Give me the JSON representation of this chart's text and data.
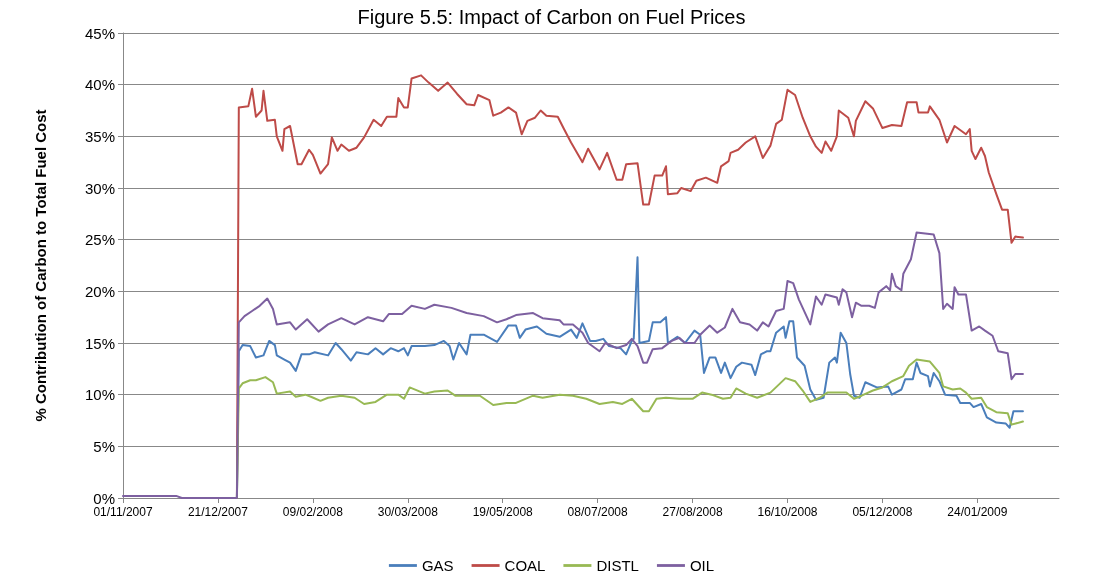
{
  "chart_data": {
    "type": "line",
    "title": "Figure 5.5: Impact of Carbon on Fuel Prices",
    "ylabel": "% Contribution of Carbon to Total Fuel Cost",
    "xlim": [
      "2007-11-01",
      "2009-03-08"
    ],
    "xticks": [
      {
        "value": "2007-11-01",
        "label": "01/11/2007"
      },
      {
        "value": "2007-12-21",
        "label": "21/12/2007"
      },
      {
        "value": "2008-02-09",
        "label": "09/02/2008"
      },
      {
        "value": "2008-03-30",
        "label": "30/03/2008"
      },
      {
        "value": "2008-05-19",
        "label": "19/05/2008"
      },
      {
        "value": "2008-07-08",
        "label": "08/07/2008"
      },
      {
        "value": "2008-08-27",
        "label": "27/08/2008"
      },
      {
        "value": "2008-10-16",
        "label": "16/10/2008"
      },
      {
        "value": "2008-12-05",
        "label": "05/12/2008"
      },
      {
        "value": "2009-01-24",
        "label": "24/01/2009"
      }
    ],
    "ylim": [
      0,
      45
    ],
    "yticks": [
      {
        "value": 0,
        "label": "0%"
      },
      {
        "value": 5,
        "label": "5%"
      },
      {
        "value": 10,
        "label": "10%"
      },
      {
        "value": 15,
        "label": "15%"
      },
      {
        "value": 20,
        "label": "20%"
      },
      {
        "value": 25,
        "label": "25%"
      },
      {
        "value": 30,
        "label": "30%"
      },
      {
        "value": 35,
        "label": "35%"
      },
      {
        "value": 40,
        "label": "40%"
      },
      {
        "value": 45,
        "label": "45%"
      }
    ],
    "grid": "y",
    "legend": "bottom",
    "marker": "none",
    "line_style": "solid",
    "series": [
      {
        "name": "GAS",
        "color": "#4a7ebb",
        "x": [
          "2007-12-31",
          "2008-01-01",
          "2008-01-03",
          "2008-01-07",
          "2008-01-10",
          "2008-01-14",
          "2008-01-17",
          "2008-01-20",
          "2008-01-21",
          "2008-01-25",
          "2008-01-28",
          "2008-01-31",
          "2008-02-03",
          "2008-02-07",
          "2008-02-10",
          "2008-02-17",
          "2008-02-21",
          "2008-02-24",
          "2008-02-29",
          "2008-03-03",
          "2008-03-09",
          "2008-03-13",
          "2008-03-17",
          "2008-03-21",
          "2008-03-25",
          "2008-03-28",
          "2008-03-30",
          "2008-04-01",
          "2008-04-08",
          "2008-04-13",
          "2008-04-18",
          "2008-04-21",
          "2008-04-23",
          "2008-04-26",
          "2008-04-30",
          "2008-05-02",
          "2008-05-09",
          "2008-05-16",
          "2008-05-22",
          "2008-05-26",
          "2008-05-28",
          "2008-05-31",
          "2008-06-06",
          "2008-06-11",
          "2008-06-18",
          "2008-06-24",
          "2008-06-27",
          "2008-06-30",
          "2008-07-04",
          "2008-07-07",
          "2008-07-11",
          "2008-07-14",
          "2008-07-20",
          "2008-07-23",
          "2008-07-26",
          "2008-07-27",
          "2008-07-29",
          "2008-07-30",
          "2008-08-04",
          "2008-08-06",
          "2008-08-10",
          "2008-08-13",
          "2008-08-14",
          "2008-08-19",
          "2008-08-23",
          "2008-08-28",
          "2008-08-31",
          "2008-09-02",
          "2008-09-05",
          "2008-09-08",
          "2008-09-11",
          "2008-09-13",
          "2008-09-16",
          "2008-09-19",
          "2008-09-22",
          "2008-09-27",
          "2008-09-29",
          "2008-10-02",
          "2008-10-05",
          "2008-10-07",
          "2008-10-10",
          "2008-10-14",
          "2008-10-15",
          "2008-10-17",
          "2008-10-19",
          "2008-10-21",
          "2008-10-25",
          "2008-10-28",
          "2008-10-31",
          "2008-11-04",
          "2008-11-07",
          "2008-11-10",
          "2008-11-11",
          "2008-11-13",
          "2008-11-16",
          "2008-11-18",
          "2008-11-20",
          "2008-11-23",
          "2008-11-26",
          "2008-12-02",
          "2008-12-08",
          "2008-12-10",
          "2008-12-15",
          "2008-12-17",
          "2008-12-21",
          "2008-12-23",
          "2008-12-25",
          "2008-12-29",
          "2008-12-30",
          "2009-01-01",
          "2009-01-04",
          "2009-01-07",
          "2009-01-13",
          "2009-01-15",
          "2009-01-20",
          "2009-01-22",
          "2009-01-26",
          "2009-01-29",
          "2009-02-03",
          "2009-02-08",
          "2009-02-10",
          "2009-02-12",
          "2009-02-17"
        ],
        "values": [
          0,
          14.2,
          14.8,
          14.7,
          13.6,
          13.8,
          15.2,
          14.8,
          13.8,
          13.4,
          13.1,
          12.3,
          13.9,
          13.9,
          14.1,
          13.8,
          15.0,
          14.4,
          13.3,
          14.1,
          13.9,
          14.5,
          13.9,
          14.5,
          14.2,
          14.5,
          13.8,
          14.7,
          14.7,
          14.8,
          15.2,
          14.7,
          13.4,
          15.0,
          13.9,
          15.8,
          15.8,
          15.1,
          16.7,
          16.7,
          15.5,
          16.3,
          16.6,
          15.9,
          15.6,
          16.3,
          15.5,
          16.9,
          15.2,
          15.2,
          15.4,
          14.7,
          14.5,
          13.9,
          15.2,
          15.4,
          23.3,
          15.0,
          15.2,
          17.0,
          17.0,
          17.5,
          15.0,
          15.6,
          15.0,
          16.2,
          15.8,
          12.1,
          13.6,
          13.6,
          12.1,
          13.1,
          11.6,
          12.7,
          13.1,
          12.9,
          11.9,
          13.9,
          14.2,
          14.2,
          16.0,
          16.6,
          15.5,
          17.1,
          17.1,
          13.6,
          12.8,
          10.5,
          9.5,
          9.7,
          13.1,
          13.6,
          13.1,
          16.0,
          15.0,
          12.0,
          9.9,
          9.7,
          11.2,
          10.7,
          10.8,
          10.0,
          10.5,
          11.5,
          11.5,
          13.1,
          12.1,
          11.8,
          10.8,
          12.1,
          11.3,
          10.0,
          9.9,
          9.2,
          9.2,
          8.8,
          9.1,
          7.8,
          7.3,
          7.2,
          6.8,
          8.4,
          8.4
        ]
      },
      {
        "name": "COAL",
        "color": "#be4b48",
        "x": [
          "2007-12-31",
          "2008-01-01",
          "2008-01-06",
          "2008-01-08",
          "2008-01-10",
          "2008-01-13",
          "2008-01-14",
          "2008-01-16",
          "2008-01-20",
          "2008-01-21",
          "2008-01-24",
          "2008-01-25",
          "2008-01-28",
          "2008-02-01",
          "2008-02-03",
          "2008-02-07",
          "2008-02-09",
          "2008-02-13",
          "2008-02-17",
          "2008-02-19",
          "2008-02-22",
          "2008-02-24",
          "2008-02-28",
          "2008-03-03",
          "2008-03-07",
          "2008-03-12",
          "2008-03-16",
          "2008-03-19",
          "2008-03-24",
          "2008-03-25",
          "2008-03-28",
          "2008-03-30",
          "2008-04-01",
          "2008-04-06",
          "2008-04-10",
          "2008-04-15",
          "2008-04-20",
          "2008-04-25",
          "2008-04-30",
          "2008-05-04",
          "2008-05-06",
          "2008-05-12",
          "2008-05-14",
          "2008-05-18",
          "2008-05-22",
          "2008-05-26",
          "2008-05-29",
          "2008-06-01",
          "2008-06-05",
          "2008-06-08",
          "2008-06-11",
          "2008-06-17",
          "2008-06-20",
          "2008-06-24",
          "2008-06-30",
          "2008-07-03",
          "2008-07-09",
          "2008-07-13",
          "2008-07-18",
          "2008-07-21",
          "2008-07-23",
          "2008-07-29",
          "2008-08-01",
          "2008-08-04",
          "2008-08-07",
          "2008-08-11",
          "2008-08-13",
          "2008-08-14",
          "2008-08-19",
          "2008-08-21",
          "2008-08-26",
          "2008-08-29",
          "2008-09-03",
          "2008-09-09",
          "2008-09-11",
          "2008-09-15",
          "2008-09-16",
          "2008-09-20",
          "2008-09-24",
          "2008-09-29",
          "2008-10-03",
          "2008-10-07",
          "2008-10-10",
          "2008-10-13",
          "2008-10-16",
          "2008-10-20",
          "2008-10-24",
          "2008-10-28",
          "2008-10-31",
          "2008-11-03",
          "2008-11-05",
          "2008-11-08",
          "2008-11-11",
          "2008-11-12",
          "2008-11-17",
          "2008-11-20",
          "2008-11-21",
          "2008-11-26",
          "2008-11-30",
          "2008-12-05",
          "2008-12-10",
          "2008-12-15",
          "2008-12-18",
          "2008-12-23",
          "2008-12-24",
          "2008-12-29",
          "2008-12-30",
          "2009-01-04",
          "2009-01-08",
          "2009-01-12",
          "2009-01-18",
          "2009-01-20",
          "2009-01-21",
          "2009-01-23",
          "2009-01-26",
          "2009-01-28",
          "2009-01-30",
          "2009-02-03",
          "2009-02-06",
          "2009-02-09",
          "2009-02-11",
          "2009-02-13",
          "2009-02-17"
        ],
        "values": [
          0,
          37.8,
          37.9,
          39.6,
          36.9,
          37.5,
          39.4,
          36.5,
          36.6,
          35.0,
          33.6,
          35.7,
          36.0,
          32.3,
          32.3,
          33.7,
          33.2,
          31.4,
          32.3,
          34.9,
          33.6,
          34.2,
          33.6,
          33.9,
          34.9,
          36.6,
          36.0,
          36.9,
          36.9,
          38.7,
          37.8,
          37.8,
          40.6,
          40.9,
          40.2,
          39.4,
          40.2,
          39.1,
          38.1,
          38.0,
          39.0,
          38.5,
          37.0,
          37.3,
          37.8,
          37.3,
          35.2,
          36.5,
          36.8,
          37.5,
          37.0,
          36.9,
          35.8,
          34.4,
          32.5,
          33.8,
          31.8,
          33.4,
          30.8,
          30.8,
          32.3,
          32.4,
          28.4,
          28.4,
          31.2,
          31.2,
          32.1,
          29.4,
          29.5,
          30.0,
          29.7,
          30.7,
          31.0,
          30.5,
          32.1,
          32.6,
          33.4,
          33.7,
          34.4,
          35.0,
          32.9,
          34.1,
          36.2,
          36.6,
          39.5,
          39.0,
          36.8,
          35.0,
          34.0,
          33.4,
          34.5,
          33.6,
          35.0,
          37.5,
          36.8,
          35.0,
          36.5,
          38.4,
          37.7,
          35.8,
          36.1,
          36.0,
          38.3,
          38.3,
          37.3,
          37.3,
          37.9,
          36.6,
          34.4,
          36.0,
          35.2,
          35.7,
          33.6,
          32.8,
          33.9,
          33.1,
          31.5,
          29.4,
          27.9,
          27.9,
          24.7,
          25.3,
          25.2
        ]
      },
      {
        "name": "DISTL",
        "color": "#98b954",
        "x": [
          "2007-12-31",
          "2008-01-01",
          "2008-01-03",
          "2008-01-07",
          "2008-01-10",
          "2008-01-15",
          "2008-01-19",
          "2008-01-21",
          "2008-01-28",
          "2008-01-31",
          "2008-02-05",
          "2008-02-08",
          "2008-02-13",
          "2008-02-17",
          "2008-02-24",
          "2008-03-02",
          "2008-03-07",
          "2008-03-13",
          "2008-03-19",
          "2008-03-25",
          "2008-03-28",
          "2008-03-31",
          "2008-04-08",
          "2008-04-13",
          "2008-04-20",
          "2008-04-24",
          "2008-04-30",
          "2008-05-07",
          "2008-05-14",
          "2008-05-21",
          "2008-05-26",
          "2008-06-04",
          "2008-06-09",
          "2008-06-18",
          "2008-06-25",
          "2008-07-02",
          "2008-07-09",
          "2008-07-16",
          "2008-07-21",
          "2008-07-26",
          "2008-08-01",
          "2008-08-04",
          "2008-08-08",
          "2008-08-13",
          "2008-08-20",
          "2008-08-27",
          "2008-09-01",
          "2008-09-06",
          "2008-09-12",
          "2008-09-16",
          "2008-09-19",
          "2008-09-24",
          "2008-09-30",
          "2008-10-07",
          "2008-10-11",
          "2008-10-15",
          "2008-10-20",
          "2008-10-24",
          "2008-10-28",
          "2008-11-02",
          "2008-11-06",
          "2008-11-11",
          "2008-11-16",
          "2008-11-20",
          "2008-11-24",
          "2008-11-30",
          "2008-12-05",
          "2008-12-10",
          "2008-12-16",
          "2008-12-19",
          "2008-12-23",
          "2008-12-30",
          "2009-01-04",
          "2009-01-06",
          "2009-01-11",
          "2009-01-15",
          "2009-01-18",
          "2009-01-21",
          "2009-01-26",
          "2009-01-29",
          "2009-02-03",
          "2009-02-09",
          "2009-02-11",
          "2009-02-17"
        ],
        "values": [
          0,
          10.6,
          11.1,
          11.4,
          11.4,
          11.7,
          11.2,
          10.1,
          10.3,
          9.8,
          10.0,
          9.8,
          9.4,
          9.7,
          9.9,
          9.7,
          9.1,
          9.3,
          10.0,
          10.0,
          9.6,
          10.7,
          10.1,
          10.3,
          10.4,
          9.9,
          9.9,
          9.9,
          9.0,
          9.2,
          9.2,
          9.9,
          9.7,
          10.0,
          9.9,
          9.6,
          9.1,
          9.3,
          9.1,
          9.6,
          8.4,
          8.4,
          9.6,
          9.7,
          9.6,
          9.6,
          10.2,
          10.0,
          9.6,
          9.7,
          10.6,
          10.1,
          9.7,
          10.2,
          10.9,
          11.6,
          11.3,
          10.4,
          9.3,
          9.7,
          10.2,
          10.2,
          10.2,
          9.6,
          9.9,
          10.4,
          10.7,
          11.3,
          11.8,
          12.8,
          13.4,
          13.2,
          12.1,
          10.8,
          10.5,
          10.6,
          10.2,
          9.6,
          9.7,
          8.8,
          8.3,
          8.2,
          7.1,
          7.4
        ]
      },
      {
        "name": "OIL",
        "color": "#7d60a0",
        "x": [
          "2007-11-01",
          "2007-11-29",
          "2007-12-02",
          "2007-12-31",
          "2008-01-01",
          "2008-01-04",
          "2008-01-08",
          "2008-01-12",
          "2008-01-16",
          "2008-01-19",
          "2008-01-21",
          "2008-01-28",
          "2008-01-31",
          "2008-02-06",
          "2008-02-12",
          "2008-02-17",
          "2008-02-24",
          "2008-03-02",
          "2008-03-09",
          "2008-03-17",
          "2008-03-20",
          "2008-03-27",
          "2008-04-01",
          "2008-04-08",
          "2008-04-13",
          "2008-04-22",
          "2008-04-30",
          "2008-05-09",
          "2008-05-16",
          "2008-05-21",
          "2008-05-26",
          "2008-06-04",
          "2008-06-09",
          "2008-06-18",
          "2008-06-20",
          "2008-06-25",
          "2008-06-30",
          "2008-07-03",
          "2008-07-09",
          "2008-07-12",
          "2008-07-18",
          "2008-07-23",
          "2008-07-26",
          "2008-07-29",
          "2008-08-01",
          "2008-08-03",
          "2008-08-06",
          "2008-08-11",
          "2008-08-16",
          "2008-08-20",
          "2008-08-23",
          "2008-08-28",
          "2008-08-31",
          "2008-09-05",
          "2008-09-09",
          "2008-09-13",
          "2008-09-17",
          "2008-09-21",
          "2008-09-26",
          "2008-09-30",
          "2008-10-03",
          "2008-10-06",
          "2008-10-10",
          "2008-10-14",
          "2008-10-16",
          "2008-10-19",
          "2008-10-22",
          "2008-10-26",
          "2008-10-28",
          "2008-10-31",
          "2008-11-03",
          "2008-11-05",
          "2008-11-11",
          "2008-11-12",
          "2008-11-14",
          "2008-11-16",
          "2008-11-19",
          "2008-11-21",
          "2008-11-24",
          "2008-11-28",
          "2008-12-01",
          "2008-12-03",
          "2008-12-07",
          "2008-12-09",
          "2008-12-10",
          "2008-12-12",
          "2008-12-15",
          "2008-12-16",
          "2008-12-20",
          "2008-12-23",
          "2009-01-01",
          "2009-01-04",
          "2009-01-06",
          "2009-01-08",
          "2009-01-11",
          "2009-01-12",
          "2009-01-14",
          "2009-01-18",
          "2009-01-21",
          "2009-01-25",
          "2009-01-28",
          "2009-02-01",
          "2009-02-04",
          "2009-02-09",
          "2009-02-11",
          "2009-02-13",
          "2009-02-17"
        ],
        "values": [
          0.2,
          0.2,
          0,
          0,
          17.0,
          17.6,
          18.1,
          18.6,
          19.3,
          18.3,
          16.8,
          17.0,
          16.3,
          17.3,
          16.1,
          16.8,
          17.4,
          16.8,
          17.5,
          17.1,
          17.8,
          17.8,
          18.6,
          18.3,
          18.7,
          18.4,
          17.9,
          17.6,
          17.0,
          17.3,
          17.7,
          17.9,
          17.4,
          17.2,
          16.8,
          16.8,
          16.0,
          15.0,
          14.2,
          15.0,
          14.5,
          14.8,
          15.4,
          14.7,
          13.1,
          13.1,
          14.4,
          14.5,
          15.2,
          15.5,
          15.0,
          15.0,
          15.8,
          16.7,
          16.0,
          16.5,
          18.3,
          17.0,
          16.8,
          16.2,
          17.0,
          16.6,
          18.1,
          18.3,
          21.0,
          20.8,
          19.2,
          17.6,
          16.8,
          19.5,
          18.7,
          19.7,
          19.4,
          18.7,
          20.2,
          19.9,
          17.5,
          18.9,
          18.6,
          18.6,
          18.4,
          19.9,
          20.5,
          20.1,
          21.7,
          20.5,
          20.1,
          21.7,
          23.1,
          25.7,
          25.5,
          23.7,
          18.3,
          18.8,
          18.3,
          20.4,
          19.7,
          19.7,
          16.2,
          16.6,
          16.2,
          15.7,
          14.2,
          14.0,
          11.5,
          12.0,
          12.0
        ]
      }
    ]
  }
}
